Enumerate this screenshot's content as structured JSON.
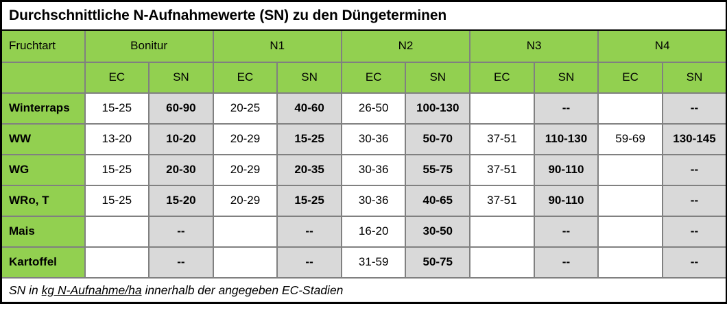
{
  "title": "Durchschnittliche N-Aufnahmewerte (SN) zu den Düngeterminen",
  "header": {
    "corner": "Fruchtart",
    "groups": [
      "Bonitur",
      "N1",
      "N2",
      "N3",
      "N4"
    ],
    "sub": [
      "EC",
      "SN"
    ]
  },
  "rows": [
    {
      "label": "Winterraps",
      "cells": [
        "15-25",
        "60-90",
        "20-25",
        "40-60",
        "26-50",
        "100-130",
        "",
        "--",
        "",
        "--"
      ]
    },
    {
      "label": "WW",
      "cells": [
        "13-20",
        "10-20",
        "20-29",
        "15-25",
        "30-36",
        "50-70",
        "37-51",
        "110-130",
        "59-69",
        "130-145"
      ]
    },
    {
      "label": "WG",
      "cells": [
        "15-25",
        "20-30",
        "20-29",
        "20-35",
        "30-36",
        "55-75",
        "37-51",
        "90-110",
        "",
        "--"
      ]
    },
    {
      "label": "WRo, T",
      "cells": [
        "15-25",
        "15-20",
        "20-29",
        "15-25",
        "30-36",
        "40-65",
        "37-51",
        "90-110",
        "",
        "--"
      ]
    },
    {
      "label": "Mais",
      "cells": [
        "",
        "--",
        "",
        "--",
        "16-20",
        "30-50",
        "",
        "--",
        "",
        "--"
      ]
    },
    {
      "label": "Kartoffel",
      "cells": [
        "",
        "--",
        "",
        "--",
        "31-59",
        "50-75",
        "",
        "--",
        "",
        "--"
      ]
    }
  ],
  "footnote": {
    "prefix": "SN in ",
    "underlined": "kg N-Aufnahme/ha",
    "suffix": " innerhalb der angegeben EC-Stadien"
  },
  "colors": {
    "green": "#92D050",
    "gray": "#D9D9D9",
    "grid": "#808080",
    "outer": "#000000",
    "text": "#000000"
  }
}
